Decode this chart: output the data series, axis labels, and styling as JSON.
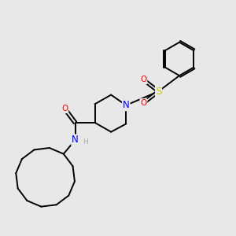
{
  "background_color": "#e8e8e8",
  "bond_color": "#000000",
  "atom_colors": {
    "N": "#0000ff",
    "O": "#ff0000",
    "S": "#cccc00",
    "H_label": "#aaaaaa"
  },
  "figsize": [
    3.0,
    3.0
  ],
  "dpi": 100,
  "lw": 1.4
}
